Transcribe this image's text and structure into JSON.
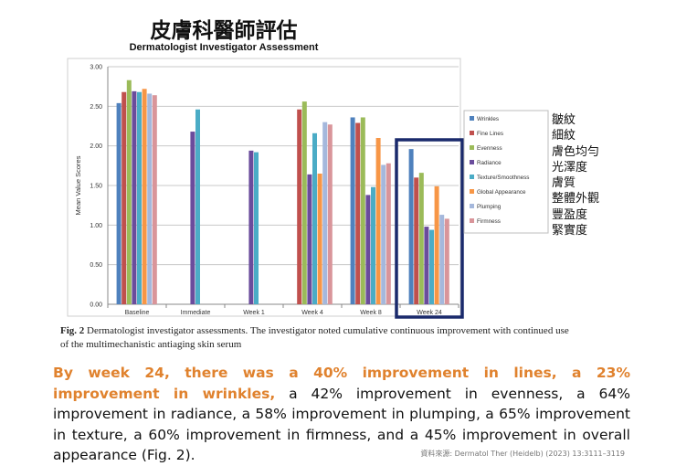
{
  "heading": {
    "title_zh": "皮膚科醫師評估",
    "title_en": "Dermatologist Investigator Assessment"
  },
  "legend_zh": [
    "皺紋",
    "細紋",
    "膚色均勻",
    "光澤度",
    "膚質",
    "整體外觀",
    "豐盈度",
    "緊實度"
  ],
  "caption": {
    "fig_label": "Fig. 2",
    "text": "Dermatologist investigator assessments. The investigator noted cumulative continuous improvement with continued use of the multimechanistic antiaging skin serum"
  },
  "summary": {
    "highlight": "By week 24, there was a 40% improvement in lines, a 23% improvement in wrinkles,",
    "rest": " a 42% improvement in evenness, a 64% improvement in radiance, a 58% improvement in plumping, a 65% improvement in texture, a 60% improvement in firmness, and a 45% improvement in overall appearance (Fig. 2)."
  },
  "source": "資料來源: Dermatol Ther (Heidelb) (2023) 13:3111–3119",
  "highlight_box_color": "#1a2a6c",
  "chart_data": {
    "type": "bar",
    "ylabel": "Mean Value Scores",
    "ylim": [
      0,
      3
    ],
    "yticks": [
      "0.00",
      "0.50",
      "1.00",
      "1.50",
      "2.00",
      "2.50",
      "3.00"
    ],
    "grid": true,
    "legend_position": "right",
    "categories": [
      "Baseline",
      "Immediate",
      "Week 1",
      "Week 4",
      "Week 8",
      "Week 24"
    ],
    "highlighted_category": "Week 24",
    "series": [
      {
        "name": "Wrinkles",
        "color": "#4f81bd",
        "values": [
          2.54,
          null,
          null,
          null,
          2.36,
          1.96
        ]
      },
      {
        "name": "Fine Lines",
        "color": "#c0504d",
        "values": [
          2.68,
          null,
          null,
          2.46,
          2.29,
          1.6
        ]
      },
      {
        "name": "Evenness",
        "color": "#9bbb59",
        "values": [
          2.83,
          null,
          null,
          2.56,
          2.36,
          1.66
        ]
      },
      {
        "name": "Radiance",
        "color": "#6a4c9c",
        "values": [
          2.69,
          2.18,
          1.94,
          1.64,
          1.38,
          0.98
        ]
      },
      {
        "name": "Texture/Smoothness",
        "color": "#4bacc6",
        "values": [
          2.68,
          2.46,
          1.92,
          2.16,
          1.48,
          0.94
        ]
      },
      {
        "name": "Global Appearance",
        "color": "#f79646",
        "values": [
          2.72,
          null,
          null,
          1.65,
          2.1,
          1.49
        ]
      },
      {
        "name": "Plumping",
        "color": "#a5b8dc",
        "values": [
          2.66,
          null,
          null,
          2.3,
          1.76,
          1.13
        ]
      },
      {
        "name": "Firmness",
        "color": "#d9959a",
        "values": [
          2.64,
          null,
          null,
          2.27,
          1.78,
          1.08
        ]
      }
    ]
  }
}
